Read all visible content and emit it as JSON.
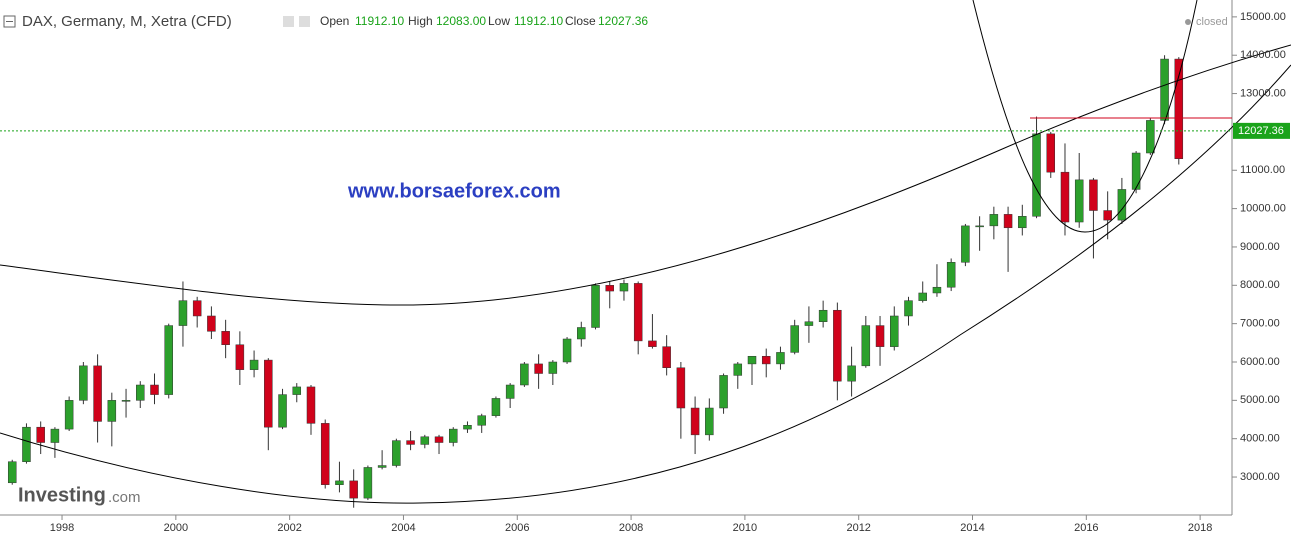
{
  "chart_data": {
    "type": "candlestick",
    "title": "DAX, Germany, M, Xetra (CFD)",
    "header": {
      "open_label": "Open",
      "open": "11912.10",
      "high_label": "High",
      "high": "12083.00",
      "low_label": "Low",
      "low": "11912.10",
      "close_label": "Close",
      "close": "12027.36"
    },
    "status": "closed",
    "watermark": "www.borsaeforex.com",
    "logo": "Investing",
    "logo_suffix": ".com",
    "last_price": 12027.36,
    "up_color": "#2ca02c",
    "down_color": "#d0021b",
    "x": [
      1997.125,
      1997.375,
      1997.625,
      1997.875,
      1998.125,
      1998.375,
      1998.625,
      1998.875,
      1999.125,
      1999.375,
      1999.625,
      1999.875,
      2000.125,
      2000.375,
      2000.625,
      2000.875,
      2001.125,
      2001.375,
      2001.625,
      2001.875,
      2002.125,
      2002.375,
      2002.625,
      2002.875,
      2003.125,
      2003.375,
      2003.625,
      2003.875,
      2004.125,
      2004.375,
      2004.625,
      2004.875,
      2005.125,
      2005.375,
      2005.625,
      2005.875,
      2006.125,
      2006.375,
      2006.625,
      2006.875,
      2007.125,
      2007.375,
      2007.625,
      2007.875,
      2008.125,
      2008.375,
      2008.625,
      2008.875,
      2009.125,
      2009.375,
      2009.625,
      2009.875,
      2010.125,
      2010.375,
      2010.625,
      2010.875,
      2011.125,
      2011.375,
      2011.625,
      2011.875,
      2012.125,
      2012.375,
      2012.625,
      2012.875,
      2013.125,
      2013.375,
      2013.625,
      2013.875,
      2014.125,
      2014.375,
      2014.625,
      2014.875,
      2015.125,
      2015.375,
      2015.625,
      2015.875,
      2016.125,
      2016.375,
      2016.625,
      2016.875,
      2017.125,
      2017.375,
      2017.625
    ],
    "open": [
      2850,
      3400,
      4300,
      3900,
      4250,
      5000,
      5900,
      4450,
      5000,
      5000,
      5400,
      5150,
      6950,
      7600,
      7200,
      6800,
      6450,
      5800,
      6050,
      4300,
      5150,
      5350,
      4400,
      2800,
      2900,
      2450,
      3250,
      3300,
      3950,
      3850,
      4050,
      3900,
      4250,
      4350,
      4600,
      5050,
      5400,
      5950,
      5700,
      6000,
      6600,
      6900,
      8000,
      7850,
      8050,
      6550,
      6400,
      5850,
      4800,
      4100,
      4800,
      5650,
      5950,
      6150,
      5950,
      6250,
      6950,
      7050,
      7350,
      5500,
      5900,
      6950,
      6400,
      7200,
      7600,
      7800,
      7950,
      8600,
      9550,
      9550,
      9850,
      9500,
      9800,
      11950,
      10950,
      9650,
      10750,
      9950,
      9700,
      10500,
      11450,
      12300,
      13900
    ],
    "high": [
      3450,
      4400,
      4450,
      4300,
      5100,
      6000,
      6200,
      5200,
      5300,
      5500,
      5700,
      7000,
      8100,
      7700,
      7450,
      7100,
      6800,
      6300,
      6100,
      5300,
      5450,
      5400,
      4500,
      3400,
      3200,
      3300,
      3700,
      4000,
      4200,
      4100,
      4100,
      4300,
      4450,
      4650,
      5100,
      5450,
      6000,
      6200,
      6050,
      6650,
      7050,
      8050,
      8100,
      8150,
      8100,
      7250,
      6700,
      6000,
      5100,
      5050,
      5700,
      6000,
      6150,
      6350,
      6400,
      7100,
      7450,
      7600,
      7550,
      6400,
      7200,
      7200,
      7450,
      7700,
      8100,
      8550,
      8700,
      9600,
      9800,
      10050,
      10050,
      10100,
      12400,
      12000,
      11700,
      11450,
      10800,
      10450,
      10800,
      11500,
      12350,
      14000,
      13950
    ],
    "low": [
      2800,
      3350,
      3600,
      3500,
      4200,
      4900,
      3900,
      3800,
      4550,
      4800,
      4900,
      5050,
      6400,
      6900,
      6600,
      6100,
      5400,
      5600,
      3700,
      4250,
      4950,
      4100,
      2700,
      2600,
      2200,
      2400,
      3200,
      3250,
      3700,
      3750,
      3600,
      3800,
      4150,
      4150,
      4550,
      4800,
      5350,
      5300,
      5400,
      5950,
      6400,
      6850,
      7400,
      7600,
      6200,
      6350,
      5650,
      4000,
      3600,
      3950,
      4650,
      5300,
      5400,
      5600,
      5800,
      6200,
      6500,
      6900,
      5000,
      5100,
      5850,
      5900,
      6300,
      6950,
      7550,
      7700,
      7850,
      8500,
      8900,
      9200,
      8350,
      9300,
      9750,
      10800,
      9300,
      9500,
      8700,
      9200,
      9600,
      10400,
      11400,
      12200,
      11150
    ],
    "close": [
      3400,
      4300,
      3900,
      4250,
      5000,
      5900,
      4450,
      5000,
      5000,
      5400,
      5150,
      6950,
      7600,
      7200,
      6800,
      6450,
      5800,
      6050,
      4300,
      5150,
      5350,
      4400,
      2800,
      2900,
      2450,
      3250,
      3300,
      3950,
      3850,
      4050,
      3900,
      4250,
      4350,
      4600,
      5050,
      5400,
      5950,
      5700,
      6000,
      6600,
      6900,
      8000,
      7850,
      8050,
      6550,
      6400,
      5850,
      4800,
      4100,
      4800,
      5650,
      5950,
      6150,
      5950,
      6250,
      6950,
      7050,
      7350,
      5500,
      5900,
      6950,
      6400,
      7200,
      7600,
      7800,
      7950,
      8600,
      9550,
      9550,
      9850,
      9500,
      9800,
      11950,
      10950,
      9650,
      10750,
      9950,
      9700,
      10500,
      11450,
      12300,
      13900,
      11300
    ],
    "xlim": [
      1996.91,
      2018.56
    ],
    "ylim": [
      2010,
      15440
    ],
    "xticks": [
      1998,
      2000,
      2002,
      2004,
      2006,
      2008,
      2010,
      2012,
      2014,
      2016,
      2018
    ],
    "yticks": [
      {
        "value": 3000,
        "label": "3000.00"
      },
      {
        "value": 4000,
        "label": "4000.00"
      },
      {
        "value": 5000,
        "label": "5000.00"
      },
      {
        "value": 6000,
        "label": "6000.00"
      },
      {
        "value": 7000,
        "label": "7000.00"
      },
      {
        "value": 8000,
        "label": "8000.00"
      },
      {
        "value": 9000,
        "label": "9000.00"
      },
      {
        "value": 10000,
        "label": "10000.00"
      },
      {
        "value": 11000,
        "label": "11000.00"
      },
      {
        "value": 13000,
        "label": "13000.00"
      },
      {
        "value": 14000,
        "label": "14000.00"
      },
      {
        "value": 15000,
        "label": "15000.00"
      }
    ]
  }
}
